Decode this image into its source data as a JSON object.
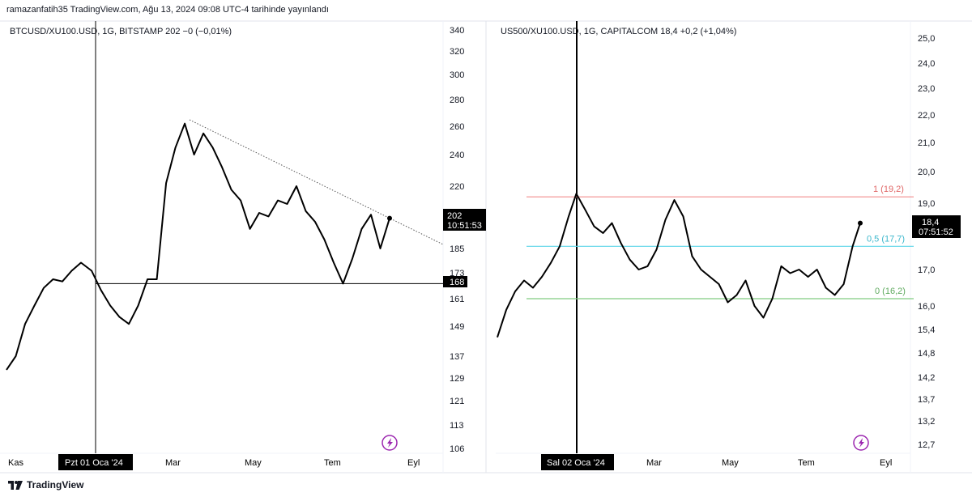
{
  "header": {
    "published_text": "ramazanfatih35 TradingView.com, Ağu 13, 2024 09:08 UTC-4 tarihinde yayınlandı"
  },
  "footer": {
    "brand": "TradingView",
    "logo_icon": "tradingview-logo-icon"
  },
  "colors": {
    "price_line": "#000000",
    "fib_top": "#f28b8b",
    "fib_mid": "#5ed6e8",
    "fib_bottom": "#80cc80",
    "label_bg": "#000000",
    "label_text": "#ffffff",
    "bolt_icon": "#9c27b0"
  },
  "chart_data": [
    {
      "type": "line",
      "legend": "BTCUSD/XU100.USD, 1G, BITSTAMP  202  −0 (−0,01%)",
      "x_labels": [
        "Kas",
        "Pzt 01 Oca '24",
        "Mar",
        "May",
        "Tem",
        "Eyl"
      ],
      "y_ticks": [
        340,
        320,
        300,
        280,
        260,
        240,
        220,
        185,
        173,
        161,
        149,
        137,
        129,
        121,
        113,
        106
      ],
      "last_price_label": "202",
      "countdown": "10:51:53",
      "support_label": "168",
      "support_level": 168,
      "trendline": "dotted descending trendline from March high (~262) toward ~185 in September",
      "vertical_marker": "Pzt 01 Oca '24",
      "series": [
        {
          "points": [
            [
              "2023-10-29",
              132
            ],
            [
              "2023-11-05",
              137
            ],
            [
              "2023-11-12",
              150
            ],
            [
              "2023-11-19",
              158
            ],
            [
              "2023-11-26",
              166
            ],
            [
              "2023-12-03",
              170
            ],
            [
              "2023-12-10",
              169
            ],
            [
              "2023-12-17",
              174
            ],
            [
              "2023-12-24",
              178
            ],
            [
              "2024-01-01",
              174
            ],
            [
              "2024-01-08",
              165
            ],
            [
              "2024-01-15",
              158
            ],
            [
              "2024-01-22",
              153
            ],
            [
              "2024-01-29",
              150
            ],
            [
              "2024-02-05",
              158
            ],
            [
              "2024-02-12",
              170
            ],
            [
              "2024-02-19",
              170
            ],
            [
              "2024-02-26",
              222
            ],
            [
              "2024-03-04",
              245
            ],
            [
              "2024-03-11",
              262
            ],
            [
              "2024-03-18",
              240
            ],
            [
              "2024-03-25",
              255
            ],
            [
              "2024-04-01",
              245
            ],
            [
              "2024-04-08",
              232
            ],
            [
              "2024-04-15",
              218
            ],
            [
              "2024-04-22",
              212
            ],
            [
              "2024-04-29",
              196
            ],
            [
              "2024-05-06",
              205
            ],
            [
              "2024-05-13",
              203
            ],
            [
              "2024-05-20",
              212
            ],
            [
              "2024-05-27",
              210
            ],
            [
              "2024-06-03",
              220
            ],
            [
              "2024-06-10",
              206
            ],
            [
              "2024-06-17",
              200
            ],
            [
              "2024-06-24",
              190
            ],
            [
              "2024-07-01",
              178
            ],
            [
              "2024-07-08",
              168
            ],
            [
              "2024-07-15",
              180
            ],
            [
              "2024-07-22",
              196
            ],
            [
              "2024-07-29",
              204
            ],
            [
              "2024-08-05",
              185
            ],
            [
              "2024-08-12",
              202
            ]
          ]
        }
      ]
    },
    {
      "type": "line",
      "legend": "US500/XU100.USD, 1G, CAPITALCOM  18,4  +0,2 (+1,04%)",
      "x_labels": [
        "Sal 02 Oca '24",
        "Mar",
        "May",
        "Tem",
        "Eyl"
      ],
      "y_ticks": [
        "25,0",
        "24,0",
        "23,0",
        "22,0",
        "21,0",
        "20,0",
        "19,0",
        "17,0",
        "16,0",
        "15,4",
        "14,8",
        "14,2",
        "13,7",
        "13,2",
        "12,7"
      ],
      "last_price_label": "18,4",
      "countdown": "07:51:52",
      "fib_levels": [
        {
          "label": "1 (19,2)",
          "value": 19.2
        },
        {
          "label": "0,5 (17,7)",
          "value": 17.7
        },
        {
          "label": "0 (16,2)",
          "value": 16.2
        }
      ],
      "vertical_marker": "Sal 02 Oca '24",
      "series": [
        {
          "points": [
            [
              "2023-11-01",
              15.2
            ],
            [
              "2023-11-08",
              15.9
            ],
            [
              "2023-11-15",
              16.4
            ],
            [
              "2023-11-22",
              16.7
            ],
            [
              "2023-11-29",
              16.5
            ],
            [
              "2023-12-06",
              16.8
            ],
            [
              "2023-12-13",
              17.2
            ],
            [
              "2023-12-20",
              17.7
            ],
            [
              "2023-12-27",
              18.6
            ],
            [
              "2024-01-02",
              19.3
            ],
            [
              "2024-01-09",
              18.8
            ],
            [
              "2024-01-16",
              18.3
            ],
            [
              "2024-01-23",
              18.1
            ],
            [
              "2024-01-30",
              18.4
            ],
            [
              "2024-02-06",
              17.8
            ],
            [
              "2024-02-13",
              17.3
            ],
            [
              "2024-02-20",
              17.0
            ],
            [
              "2024-02-27",
              17.1
            ],
            [
              "2024-03-05",
              17.6
            ],
            [
              "2024-03-12",
              18.5
            ],
            [
              "2024-03-19",
              19.1
            ],
            [
              "2024-03-26",
              18.6
            ],
            [
              "2024-04-02",
              17.4
            ],
            [
              "2024-04-09",
              17.0
            ],
            [
              "2024-04-16",
              16.8
            ],
            [
              "2024-04-23",
              16.6
            ],
            [
              "2024-04-30",
              16.1
            ],
            [
              "2024-05-07",
              16.3
            ],
            [
              "2024-05-14",
              16.7
            ],
            [
              "2024-05-21",
              16.0
            ],
            [
              "2024-05-28",
              15.7
            ],
            [
              "2024-06-04",
              16.2
            ],
            [
              "2024-06-11",
              17.1
            ],
            [
              "2024-06-18",
              16.9
            ],
            [
              "2024-06-25",
              17.0
            ],
            [
              "2024-07-02",
              16.8
            ],
            [
              "2024-07-09",
              17.0
            ],
            [
              "2024-07-16",
              16.5
            ],
            [
              "2024-07-23",
              16.3
            ],
            [
              "2024-07-30",
              16.6
            ],
            [
              "2024-08-06",
              17.7
            ],
            [
              "2024-08-12",
              18.4
            ]
          ]
        }
      ]
    }
  ]
}
